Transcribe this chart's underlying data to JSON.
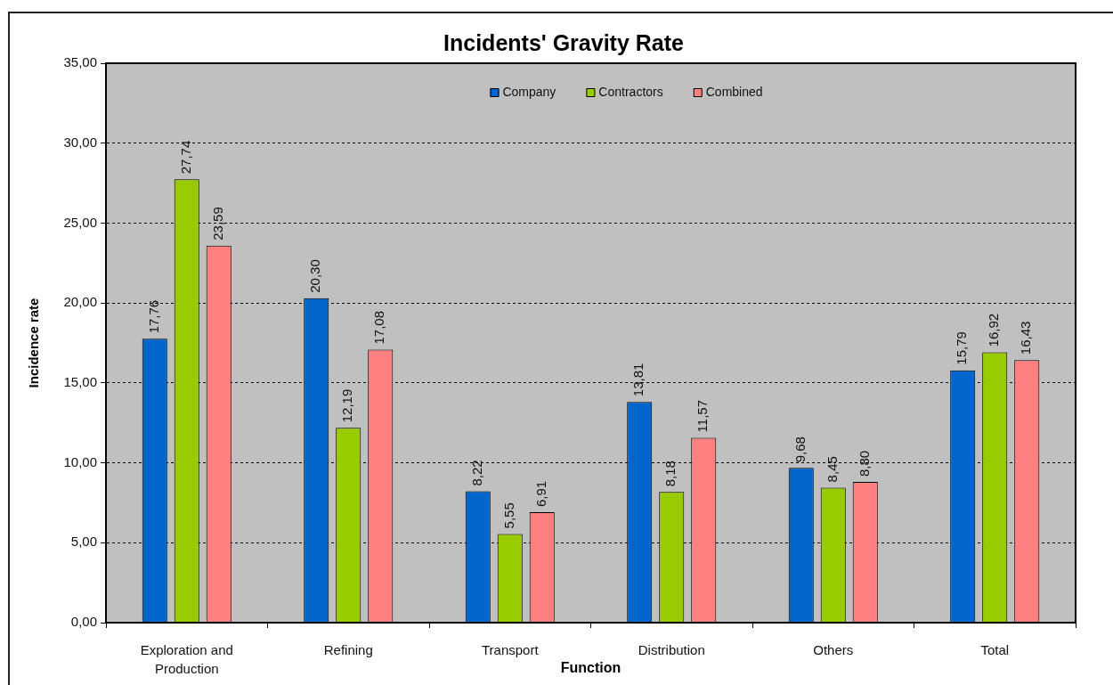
{
  "chart_data": {
    "type": "bar",
    "title": "Incidents' Gravity Rate",
    "xlabel": "Function",
    "ylabel": "Incidence rate",
    "categories": [
      "Exploration and Production",
      "Refining",
      "Transport",
      "Distribution",
      "Others",
      "Total"
    ],
    "series": [
      {
        "name": "Company",
        "color": "#0066cc",
        "values": [
          17.76,
          20.3,
          8.22,
          13.81,
          9.68,
          15.79
        ],
        "value_labels": [
          "17,76",
          "20,30",
          "8,22",
          "13,81",
          "9,68",
          "15,79"
        ]
      },
      {
        "name": "Contractors",
        "color": "#99cc00",
        "values": [
          27.74,
          12.19,
          5.55,
          8.18,
          8.45,
          16.92
        ],
        "value_labels": [
          "27,74",
          "12,19",
          "5,55",
          "8,18",
          "8,45",
          "16,92"
        ]
      },
      {
        "name": "Combined",
        "color": "#ff8080",
        "values": [
          23.59,
          17.08,
          6.91,
          11.57,
          8.8,
          16.43
        ],
        "value_labels": [
          "23,59",
          "17,08",
          "6,91",
          "11,57",
          "8,80",
          "16,43"
        ]
      }
    ],
    "ylim": [
      0,
      35
    ],
    "yticks": [
      {
        "value": 0,
        "label": "0,00"
      },
      {
        "value": 5,
        "label": "5,00"
      },
      {
        "value": 10,
        "label": "10,00"
      },
      {
        "value": 15,
        "label": "15,00"
      },
      {
        "value": 20,
        "label": "20,00"
      },
      {
        "value": 25,
        "label": "25,00"
      },
      {
        "value": 30,
        "label": "30,00"
      },
      {
        "value": 35,
        "label": "35,00"
      }
    ],
    "grid": "y",
    "legend": "top"
  }
}
